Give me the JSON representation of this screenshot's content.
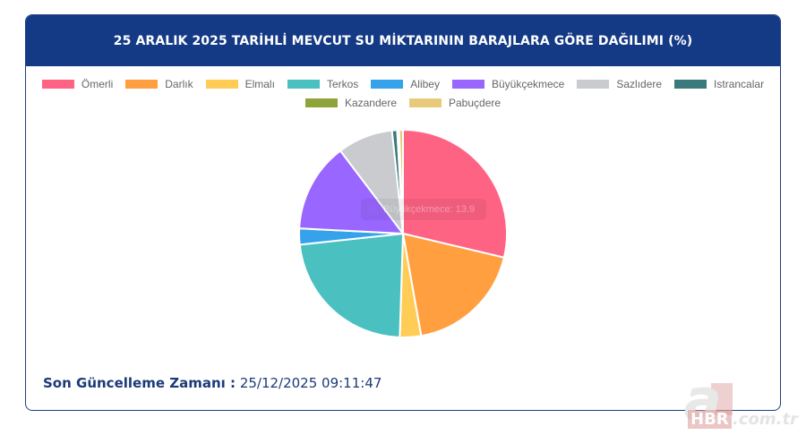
{
  "header": {
    "title": "25 ARALIK 2025 TARİHLİ MEVCUT SU MİKTARININ BARAJLARA GÖRE DAĞILIMI (%)"
  },
  "legend": {
    "rows": [
      [
        {
          "label": "Ömerli",
          "color": "#ff6384"
        },
        {
          "label": "Darlık",
          "color": "#ff9f40"
        },
        {
          "label": "Elmalı",
          "color": "#ffcd56"
        },
        {
          "label": "Terkos",
          "color": "#4bc0c0"
        },
        {
          "label": "Alibey",
          "color": "#36a2eb"
        },
        {
          "label": "Büyükçekmece",
          "color": "#9966ff"
        },
        {
          "label": "Sazlıdere",
          "color": "#c9cbcf"
        },
        {
          "label": "Istrancalar",
          "color": "#3a7a7c"
        }
      ],
      [
        {
          "label": "Kazandere",
          "color": "#8fa33b"
        },
        {
          "label": "Pabuçdere",
          "color": "#e8cb7a"
        }
      ]
    ]
  },
  "tooltip": {
    "text": "Büyükçekmece: 13.9"
  },
  "footer": {
    "label": "Son Güncelleme Zamanı :",
    "value": "25/12/2025 09:11:47"
  },
  "watermark": {
    "letter": "a",
    "brand": "HBR",
    "tld": ".com.tr"
  },
  "chart_data": {
    "type": "pie",
    "title": "25 ARALIK 2025 TARİHLİ MEVCUT SU MİKTARININ BARAJLARA GÖRE DAĞILIMI (%)",
    "categories": [
      "Ömerli",
      "Darlık",
      "Elmalı",
      "Terkos",
      "Alibey",
      "Büyükçekmece",
      "Sazlıdere",
      "Istrancalar",
      "Kazandere",
      "Pabuçdere"
    ],
    "values": [
      28.7,
      18.5,
      3.3,
      22.8,
      2.5,
      13.9,
      8.6,
      0.8,
      0.3,
      0.6
    ],
    "colors": [
      "#ff6384",
      "#ff9f40",
      "#ffcd56",
      "#4bc0c0",
      "#36a2eb",
      "#9966ff",
      "#c9cbcf",
      "#3a7a7c",
      "#8fa33b",
      "#e8cb7a"
    ],
    "unit": "%",
    "legend_position": "top",
    "start_angle": "top, clockwise"
  }
}
